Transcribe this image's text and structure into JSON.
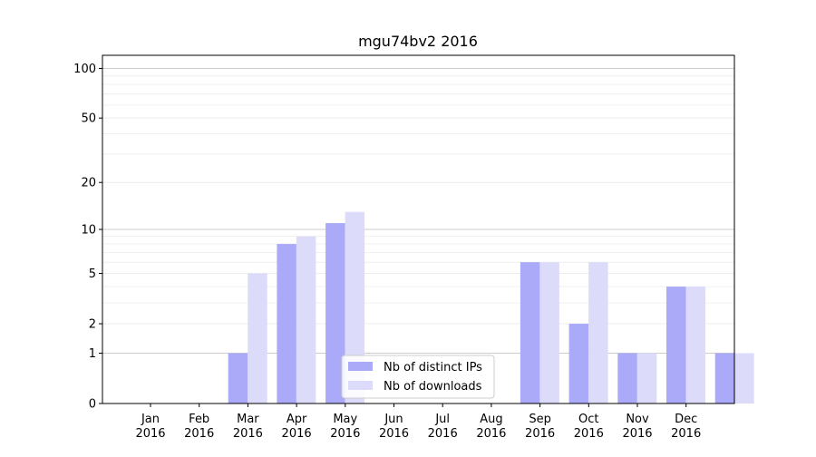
{
  "chart_data": {
    "type": "bar",
    "title": "mgu74bv2 2016",
    "xlabel": "",
    "ylabel": "",
    "yscale": "log(1+y)",
    "ylim": [
      0,
      120
    ],
    "categories": [
      {
        "month": "Jan",
        "year": "2016"
      },
      {
        "month": "Feb",
        "year": "2016"
      },
      {
        "month": "Mar",
        "year": "2016"
      },
      {
        "month": "Apr",
        "year": "2016"
      },
      {
        "month": "May",
        "year": "2016"
      },
      {
        "month": "Jun",
        "year": "2016"
      },
      {
        "month": "Jul",
        "year": "2016"
      },
      {
        "month": "Aug",
        "year": "2016"
      },
      {
        "month": "Sep",
        "year": "2016"
      },
      {
        "month": "Oct",
        "year": "2016"
      },
      {
        "month": "Nov",
        "year": "2016"
      },
      {
        "month": "Dec",
        "year": "2016"
      }
    ],
    "yticks": [
      {
        "value": 0,
        "label": "0"
      },
      {
        "value": 1,
        "label": "1"
      },
      {
        "value": 2,
        "label": "2"
      },
      {
        "value": 5,
        "label": "5"
      },
      {
        "value": 10,
        "label": "10"
      },
      {
        "value": 20,
        "label": "20"
      },
      {
        "value": 50,
        "label": "50"
      },
      {
        "value": 100,
        "label": "100"
      }
    ],
    "series": [
      {
        "name": "Nb of distinct IPs",
        "color": "#aaaaf8",
        "values": [
          0,
          1,
          8,
          11,
          0,
          0,
          0,
          6,
          2,
          1,
          4,
          1
        ]
      },
      {
        "name": "Nb of downloads",
        "color": "#dcdcfa",
        "values": [
          0,
          5,
          9,
          13,
          0,
          0,
          0,
          6,
          6,
          1,
          4,
          1
        ]
      }
    ],
    "grid": true,
    "legend_position": "lower center"
  }
}
